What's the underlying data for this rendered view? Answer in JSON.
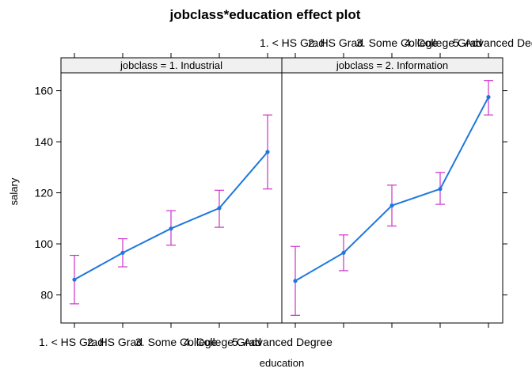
{
  "chart_data": {
    "type": "line",
    "title": "jobclass*education effect plot",
    "xlabel": "education",
    "ylabel": "salary",
    "categories": [
      "1. < HS Grad",
      "2. HS Grad",
      "3. Some College",
      "4. College Grad",
      "5. Advanced Degree"
    ],
    "yticks": [
      80,
      100,
      120,
      140,
      160
    ],
    "ylim": [
      69,
      167
    ],
    "grid": false,
    "colors": {
      "line": "#1e78dc",
      "errorbar": "#cc33cc",
      "strip": "#f0f0f0"
    },
    "panels": [
      {
        "strip": "jobclass = 1. Industrial",
        "series": [
          {
            "values": [
              86,
              96.5,
              106,
              114,
              136
            ],
            "lower": [
              76.5,
              91,
              99.5,
              106.5,
              121.5
            ],
            "upper": [
              95.5,
              102,
              113,
              121,
              150.5
            ]
          }
        ]
      },
      {
        "strip": "jobclass = 2. Information",
        "series": [
          {
            "values": [
              85.5,
              96.5,
              115,
              121.5,
              157.5
            ],
            "lower": [
              72,
              89.5,
              107,
              115.5,
              150.5
            ],
            "upper": [
              99,
              103.5,
              123,
              128,
              164
            ]
          }
        ]
      }
    ]
  }
}
